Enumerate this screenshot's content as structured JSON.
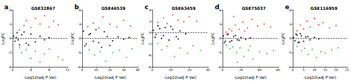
{
  "chart_data": [
    {
      "type": "scatter",
      "annotation": "a",
      "title": "GSE32867",
      "x_label": "-Log10(adj P Val)",
      "y_label": "LogFC",
      "xlim": [
        0,
        12
      ],
      "xticks": [
        0,
        4,
        8,
        12
      ],
      "ylim": [
        -4,
        4
      ],
      "yticks": [
        -4,
        -2,
        0,
        2,
        4
      ],
      "grid": false,
      "hline": 0,
      "series": [
        {
          "color": "#000000",
          "x": [
            0.2,
            0.5,
            1,
            1.5,
            2,
            3,
            4,
            5,
            6,
            7,
            8,
            1.2,
            2.5,
            3.5,
            0.8
          ],
          "values": [
            0.3,
            -0.4,
            0.8,
            -0.9,
            0.5,
            -0.7,
            0.6,
            -0.5,
            0.3,
            -0.2,
            0.1,
            -0.2,
            0.9,
            -0.95,
            0.1
          ]
        },
        {
          "color": "#f03a3a",
          "x": [
            1.5,
            2.5,
            3,
            4,
            5,
            6,
            7,
            8,
            9,
            10
          ],
          "values": [
            1.2,
            1.8,
            2.5,
            1.5,
            2.8,
            2.0,
            3.2,
            1.6,
            2.4,
            1.9
          ]
        },
        {
          "color": "#3cb83c",
          "x": [
            1.5,
            2,
            3,
            4,
            5,
            6,
            7,
            8,
            10,
            11
          ],
          "values": [
            -1.3,
            -2.0,
            -1.6,
            -2.8,
            -1.8,
            -3.3,
            -2.2,
            -1.5,
            -2.6,
            -3.0
          ]
        }
      ]
    },
    {
      "type": "scatter",
      "annotation": "b",
      "title": "GSE46539",
      "x_label": "-Log10(adj P Val)",
      "y_label": "LogFC",
      "xlim": [
        0,
        40
      ],
      "xticks": [
        0,
        10,
        20,
        30,
        40
      ],
      "ylim": [
        -6,
        6
      ],
      "yticks": [
        -6,
        -3,
        0,
        3,
        6
      ],
      "grid": false,
      "hline": 0,
      "series": [
        {
          "color": "#000000",
          "x": [
            1,
            3,
            5,
            8,
            10,
            14,
            18,
            22,
            26,
            30,
            2,
            6,
            12,
            16,
            20,
            34
          ],
          "values": [
            1.5,
            -1.2,
            0.8,
            -0.6,
            1.8,
            -1.9,
            0.4,
            -0.5,
            0.3,
            -0.2,
            -1.6,
            1.0,
            -0.9,
            1.4,
            -1.5,
            0.2
          ]
        },
        {
          "color": "#f03a3a",
          "x": [
            4,
            8,
            12,
            15,
            20,
            25,
            30,
            35
          ],
          "values": [
            2.5,
            3.2,
            2.2,
            4.5,
            3.0,
            2.4,
            3.8,
            2.6
          ]
        },
        {
          "color": "#3cb83c",
          "x": [
            5,
            9,
            13,
            17,
            22,
            27,
            32,
            36
          ],
          "values": [
            -2.4,
            -3.5,
            -2.8,
            -4.8,
            -3.0,
            -2.5,
            -4.0,
            -2.2
          ]
        }
      ]
    },
    {
      "type": "scatter",
      "annotation": "c",
      "title": "GSE63459",
      "x_label": "-Log10(adj P Val)",
      "y_label": "LogFC",
      "xlim": [
        0,
        30
      ],
      "xticks": [
        0,
        10,
        20,
        30
      ],
      "ylim": [
        -6,
        4
      ],
      "yticks": [
        -6,
        -4,
        -2,
        0,
        2,
        4
      ],
      "grid": false,
      "hline": 0,
      "series": [
        {
          "color": "#000000",
          "x": [
            0.5,
            1.5,
            3,
            5,
            7,
            9,
            11,
            13,
            15,
            18,
            2,
            4,
            6,
            10,
            14
          ],
          "values": [
            0.4,
            -0.8,
            1.2,
            -1.0,
            0.9,
            -1.3,
            0.6,
            -0.7,
            0.3,
            -0.2,
            -0.3,
            0.7,
            -0.5,
            1.1,
            -1.1
          ]
        },
        {
          "color": "#f03a3a",
          "x": [
            3,
            6,
            8,
            11,
            14,
            17,
            20,
            24
          ],
          "values": [
            1.8,
            2.6,
            1.6,
            3.1,
            2.2,
            1.9,
            2.8,
            2.0
          ]
        },
        {
          "color": "#3cb83c",
          "x": [
            3,
            5,
            8,
            12,
            15,
            19,
            22,
            26
          ],
          "values": [
            -1.9,
            -3.0,
            -2.4,
            -4.2,
            -2.7,
            -3.6,
            -2.3,
            -3.1
          ]
        }
      ]
    },
    {
      "type": "scatter",
      "annotation": "d",
      "title": "GSE75037",
      "x_label": "-Log10(adj P Val)",
      "y_label": "LogFC",
      "xlim": [
        0,
        60
      ],
      "xticks": [
        0,
        20,
        40,
        60
      ],
      "ylim": [
        -6,
        6
      ],
      "yticks": [
        -6,
        -3,
        0,
        3,
        6
      ],
      "grid": false,
      "hline": 0,
      "series": [
        {
          "color": "#000000",
          "x": [
            1,
            3,
            5,
            8,
            12,
            16,
            20,
            25,
            30,
            2,
            6,
            10,
            14,
            18
          ],
          "values": [
            0.5,
            -0.6,
            0.8,
            -0.7,
            0.4,
            -0.3,
            0.2,
            -0.2,
            0.1,
            -0.9,
            0.9,
            -0.5,
            0.6,
            -0.4
          ]
        },
        {
          "color": "#f03a3a",
          "x": [
            4,
            7,
            10,
            14,
            18,
            22,
            27,
            32,
            38,
            45,
            52,
            12,
            24
          ],
          "values": [
            1.3,
            2.0,
            1.6,
            2.8,
            1.9,
            3.4,
            2.2,
            4.0,
            2.6,
            3.0,
            2.4,
            4.6,
            1.5
          ]
        },
        {
          "color": "#3cb83c",
          "x": [
            4,
            8,
            11,
            15,
            19,
            23,
            28,
            33,
            40,
            48,
            55,
            16,
            30
          ],
          "values": [
            -1.4,
            -2.2,
            -1.8,
            -3.0,
            -2.0,
            -3.8,
            -2.5,
            -4.3,
            -2.8,
            -3.2,
            -2.6,
            -5.0,
            -1.6
          ]
        }
      ]
    },
    {
      "type": "scatter",
      "annotation": "e",
      "title": "GSE116959",
      "x_label": "-Log10(adj P Val)",
      "y_label": "LogFC",
      "xlim": [
        0,
        25
      ],
      "xticks": [
        0,
        5,
        10,
        15,
        20,
        25
      ],
      "ylim": [
        -6,
        6
      ],
      "yticks": [
        -6,
        -3,
        0,
        3,
        6
      ],
      "grid": false,
      "hline": 0,
      "series": [
        {
          "color": "#000000",
          "x": [
            0.3,
            1,
            2,
            3,
            4,
            5,
            6,
            8,
            10,
            12,
            1.5,
            2.5,
            3.5,
            7
          ],
          "values": [
            0.2,
            -0.5,
            0.7,
            -0.8,
            0.5,
            -0.6,
            0.3,
            -0.3,
            0.2,
            -0.1,
            0.9,
            -0.9,
            1.0,
            0.4
          ]
        },
        {
          "color": "#f03a3a",
          "x": [
            2,
            3.5,
            5,
            6.5,
            8,
            10,
            12,
            14,
            17,
            20
          ],
          "values": [
            1.6,
            2.8,
            2.0,
            3.6,
            2.4,
            4.2,
            2.9,
            3.3,
            2.2,
            2.7
          ]
        },
        {
          "color": "#3cb83c",
          "x": [
            2,
            4,
            5.5,
            7,
            9,
            11,
            13,
            15,
            18,
            21
          ],
          "values": [
            -1.7,
            -2.6,
            -2.1,
            -3.4,
            -2.3,
            -4.0,
            -2.8,
            -3.1,
            -2.4,
            -2.0
          ]
        }
      ]
    }
  ]
}
